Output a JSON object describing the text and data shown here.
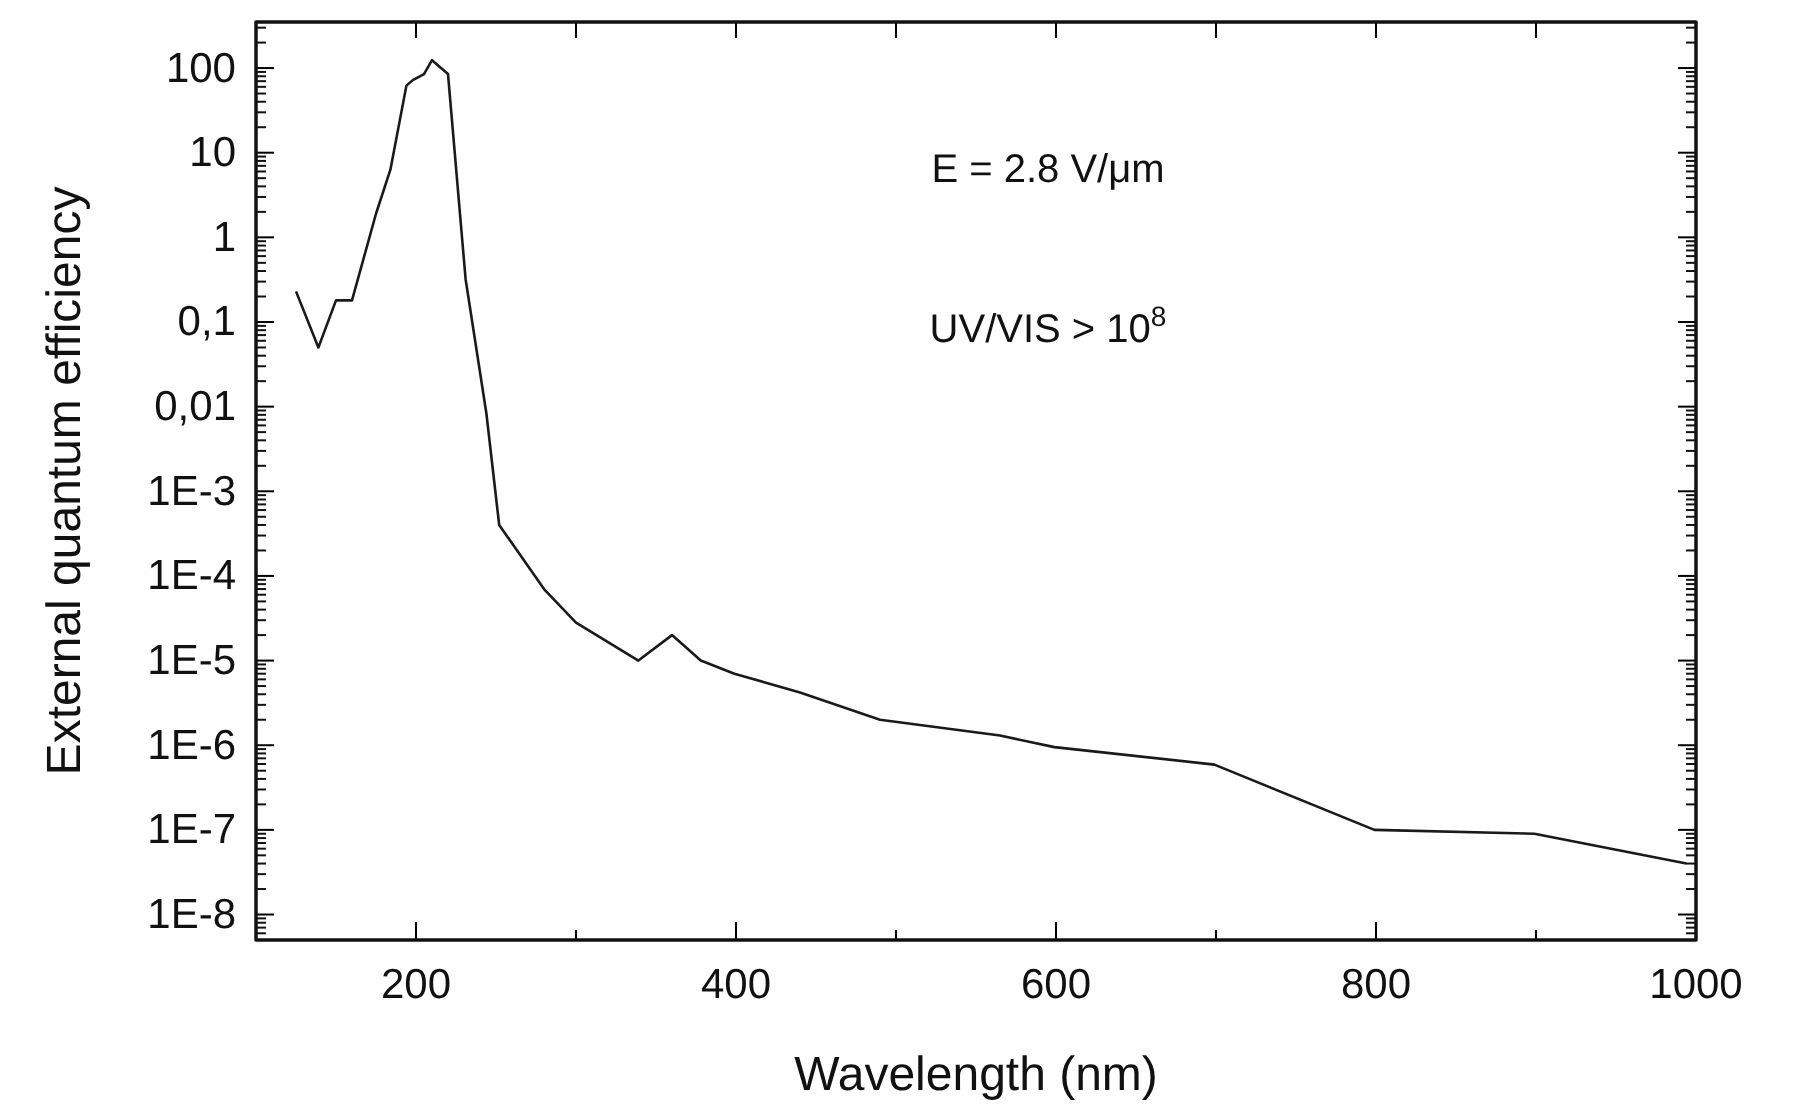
{
  "chart_data": {
    "type": "line",
    "xlabel": "Wavelength (nm)",
    "ylabel": "External quantum efficiency",
    "log": "y",
    "grid": false,
    "marker": "none",
    "line_style": "solid",
    "xlim": [
      100,
      1000
    ],
    "xticks": [
      {
        "value": 100,
        "label": null
      },
      200,
      {
        "value": 300,
        "label": null
      },
      400,
      {
        "value": 500,
        "label": null
      },
      600,
      {
        "value": 700,
        "label": null
      },
      800,
      {
        "value": 900,
        "label": null
      },
      1000
    ],
    "ylim": [
      5e-09,
      350
    ],
    "yticks": [
      {
        "value": 100,
        "label": "100"
      },
      {
        "value": 10,
        "label": "10"
      },
      {
        "value": 1,
        "label": "1"
      },
      {
        "value": 0.1,
        "label": "0,1"
      },
      {
        "value": 0.01,
        "label": "0,01"
      },
      {
        "value": 0.001,
        "label": "1E-3"
      },
      {
        "value": 0.0001,
        "label": "1E-4"
      },
      {
        "value": 1e-05,
        "label": "1E-5"
      },
      {
        "value": 1e-06,
        "label": "1E-6"
      },
      {
        "value": 1e-07,
        "label": "1E-7"
      },
      {
        "value": 1e-08,
        "label": "1E-8"
      }
    ],
    "annotations": [
      "E = 2.8 V/μm",
      "UV/VIS > 10$^{8}$"
    ],
    "series": [
      {
        "color": "#1a1a1a",
        "x": [
          125,
          139,
          150,
          160,
          175,
          184,
          194,
          198,
          205,
          210,
          220,
          231,
          244,
          252,
          280,
          300,
          339,
          360,
          378,
          399,
          440,
          490,
          565,
          599,
          699,
          799,
          899,
          994
        ],
        "values": [
          0.23,
          0.05,
          0.18,
          0.18,
          1.9,
          6.3,
          62,
          72,
          85,
          124,
          85,
          0.32,
          0.0083,
          0.0004,
          7e-05,
          2.8e-05,
          1e-05,
          2e-05,
          1e-05,
          7e-06,
          4.2e-06,
          2e-06,
          1.3e-06,
          9.5e-07,
          5.9e-07,
          1e-07,
          9e-08,
          4e-08
        ]
      }
    ]
  }
}
